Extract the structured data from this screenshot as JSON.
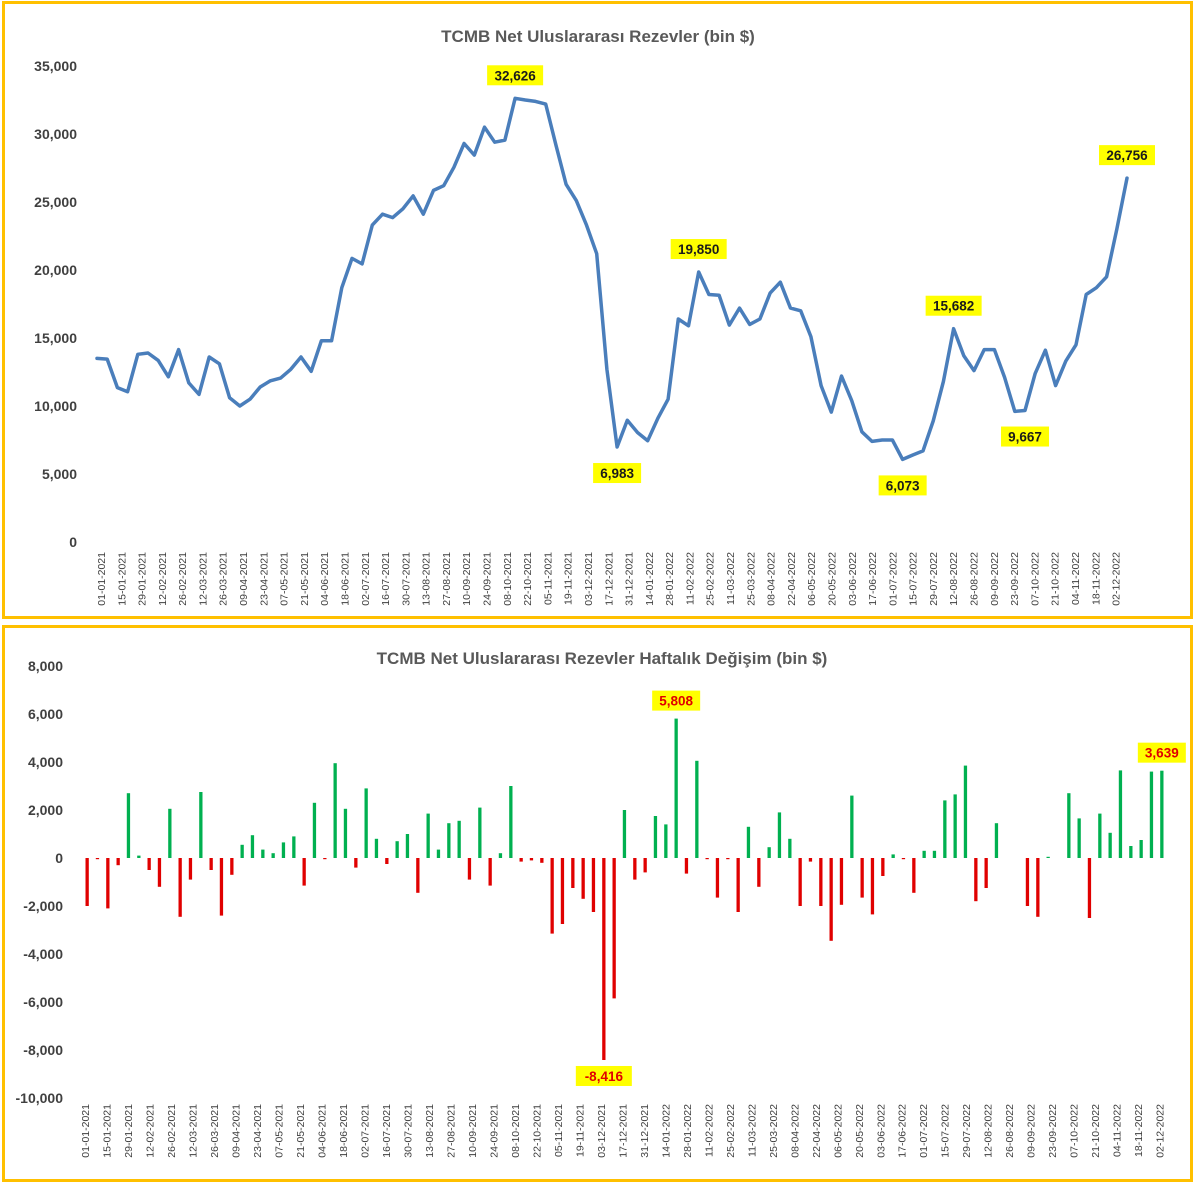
{
  "colors": {
    "frame": "#FFC000",
    "line": "#4A7EBB",
    "positive": "#00B050",
    "negative": "#E00000",
    "label_bg": "#FFFF00",
    "label_text_top": "#1a1a1a",
    "label_text_bottom": "#E00000"
  },
  "chart_data": [
    {
      "type": "line",
      "title": "TCMB Net Uluslararası Rezevler (bin $)",
      "xlabel": "",
      "ylabel": "",
      "ylim": [
        0,
        35000
      ],
      "yticks": [
        "0",
        "5,000",
        "10,000",
        "15,000",
        "20,000",
        "25,000",
        "30,000",
        "35,000"
      ],
      "grid": false,
      "x_tick_labels": [
        "01-01-2021",
        "15-01-2021",
        "29-01-2021",
        "12-02-2021",
        "26-02-2021",
        "12-03-2021",
        "26-03-2021",
        "09-04-2021",
        "23-04-2021",
        "07-05-2021",
        "21-05-2021",
        "04-06-2021",
        "18-06-2021",
        "02-07-2021",
        "16-07-2021",
        "30-07-2021",
        "13-08-2021",
        "27-08-2021",
        "10-09-2021",
        "24-09-2021",
        "08-10-2021",
        "22-10-2021",
        "05-11-2021",
        "19-11-2021",
        "03-12-2021",
        "17-12-2021",
        "31-12-2021",
        "14-01-2022",
        "28-01-2022",
        "11-02-2022",
        "25-02-2022",
        "11-03-2022",
        "25-03-2022",
        "08-04-2022",
        "22-04-2022",
        "06-05-2022",
        "20-05-2022",
        "03-06-2022",
        "17-06-2022",
        "01-07-2022",
        "15-07-2022",
        "29-07-2022",
        "12-08-2022",
        "26-08-2022",
        "09-09-2022",
        "23-09-2022",
        "07-10-2022",
        "21-10-2022",
        "04-11-2022",
        "18-11-2022",
        "02-12-2022"
      ],
      "series": [
        {
          "values": [
            13500,
            13450,
            11350,
            11050,
            13800,
            13900,
            13350,
            12150,
            14150,
            11700,
            10850,
            13600,
            13100,
            10600,
            10000,
            10500,
            11400,
            11850,
            12050,
            12700,
            13600,
            12550,
            14800,
            14800,
            18700,
            20850,
            20450,
            23300,
            24100,
            23850,
            24500,
            25450,
            24100,
            25850,
            26200,
            27550,
            29300,
            28450,
            30500,
            29400,
            29550,
            32626,
            32500,
            32400,
            32200,
            29200,
            26300,
            25100,
            23300,
            21200,
            12700,
            6983,
            8950,
            8050,
            7450,
            9100,
            10500,
            16400,
            15900,
            19850,
            18200,
            18150,
            15950,
            17200,
            16000,
            16400,
            18300,
            19100,
            17200,
            17000,
            15100,
            11500,
            9550,
            12200,
            10400,
            8100,
            7400,
            7500,
            7500,
            6073,
            6400,
            6700,
            8900,
            11800,
            15682,
            13700,
            12600,
            14150,
            14150,
            12100,
            9600,
            9667,
            12400,
            14100,
            11500,
            13300,
            14500,
            18200,
            18700,
            19500,
            23000,
            26756
          ]
        }
      ],
      "annotations": [
        {
          "index": 41,
          "text": "32,626",
          "position": "above"
        },
        {
          "index": 51,
          "text": "6,983",
          "position": "below"
        },
        {
          "index": 59,
          "text": "19,850",
          "position": "above"
        },
        {
          "index": 79,
          "text": "6,073",
          "position": "below"
        },
        {
          "index": 84,
          "text": "15,682",
          "position": "above"
        },
        {
          "index": 91,
          "text": "9,667",
          "position": "below"
        },
        {
          "index": 101,
          "text": "26,756",
          "position": "above"
        }
      ]
    },
    {
      "type": "bar",
      "title": "TCMB Net Uluslararası Rezevler Haftalık Değişim (bin $)",
      "xlabel": "",
      "ylabel": "",
      "ylim": [
        -10000,
        8000
      ],
      "yticks": [
        "-10,000",
        "-8,000",
        "-6,000",
        "-4,000",
        "-2,000",
        "0",
        "2,000",
        "4,000",
        "6,000",
        "8,000"
      ],
      "grid": false,
      "x_tick_labels": [
        "01-01-2021",
        "15-01-2021",
        "29-01-2021",
        "12-02-2021",
        "26-02-2021",
        "12-03-2021",
        "26-03-2021",
        "09-04-2021",
        "23-04-2021",
        "07-05-2021",
        "21-05-2021",
        "04-06-2021",
        "18-06-2021",
        "02-07-2021",
        "16-07-2021",
        "30-07-2021",
        "13-08-2021",
        "27-08-2021",
        "10-09-2021",
        "24-09-2021",
        "08-10-2021",
        "22-10-2021",
        "05-11-2021",
        "19-11-2021",
        "03-12-2021",
        "17-12-2021",
        "31-12-2021",
        "14-01-2022",
        "28-01-2022",
        "11-02-2022",
        "25-02-2022",
        "11-03-2022",
        "25-03-2022",
        "08-04-2022",
        "22-04-2022",
        "06-05-2022",
        "20-05-2022",
        "03-06-2022",
        "17-06-2022",
        "01-07-2022",
        "15-07-2022",
        "29-07-2022",
        "12-08-2022",
        "26-08-2022",
        "09-09-2022",
        "23-09-2022",
        "07-10-2022",
        "21-10-2022",
        "04-11-2022",
        "18-11-2022",
        "02-12-2022"
      ],
      "values": [
        -2000,
        -50,
        -2100,
        -300,
        2700,
        100,
        -500,
        -1200,
        2050,
        -2450,
        -900,
        2750,
        -500,
        -2400,
        -700,
        550,
        950,
        350,
        200,
        650,
        900,
        -1150,
        2300,
        -50,
        3950,
        2050,
        -400,
        2900,
        800,
        -250,
        700,
        1000,
        -1450,
        1850,
        350,
        1450,
        1550,
        -900,
        2100,
        -1150,
        200,
        3000,
        -150,
        -100,
        -200,
        -3150,
        -2750,
        -1250,
        -1700,
        -2250,
        -8416,
        -5850,
        2000,
        -900,
        -600,
        1750,
        1400,
        5808,
        -650,
        4050,
        -50,
        -1650,
        -50,
        -2250,
        1300,
        -1200,
        450,
        1900,
        800,
        -2000,
        -150,
        -2000,
        -3450,
        -1950,
        2600,
        -1650,
        -2350,
        -750,
        150,
        -50,
        -1450,
        300,
        300,
        2400,
        2650,
        3850,
        -1800,
        -1250,
        1450,
        0,
        0,
        -2000,
        -2450,
        50,
        0,
        2700,
        1650,
        -2500,
        1850,
        1050,
        3650,
        500,
        750,
        3600,
        3639
      ],
      "annotations": [
        {
          "index": 50,
          "text": "-8,416",
          "position": "below"
        },
        {
          "index": 57,
          "text": "5,808",
          "position": "above"
        },
        {
          "index": 104,
          "text": "3,639",
          "position": "above"
        }
      ]
    }
  ]
}
